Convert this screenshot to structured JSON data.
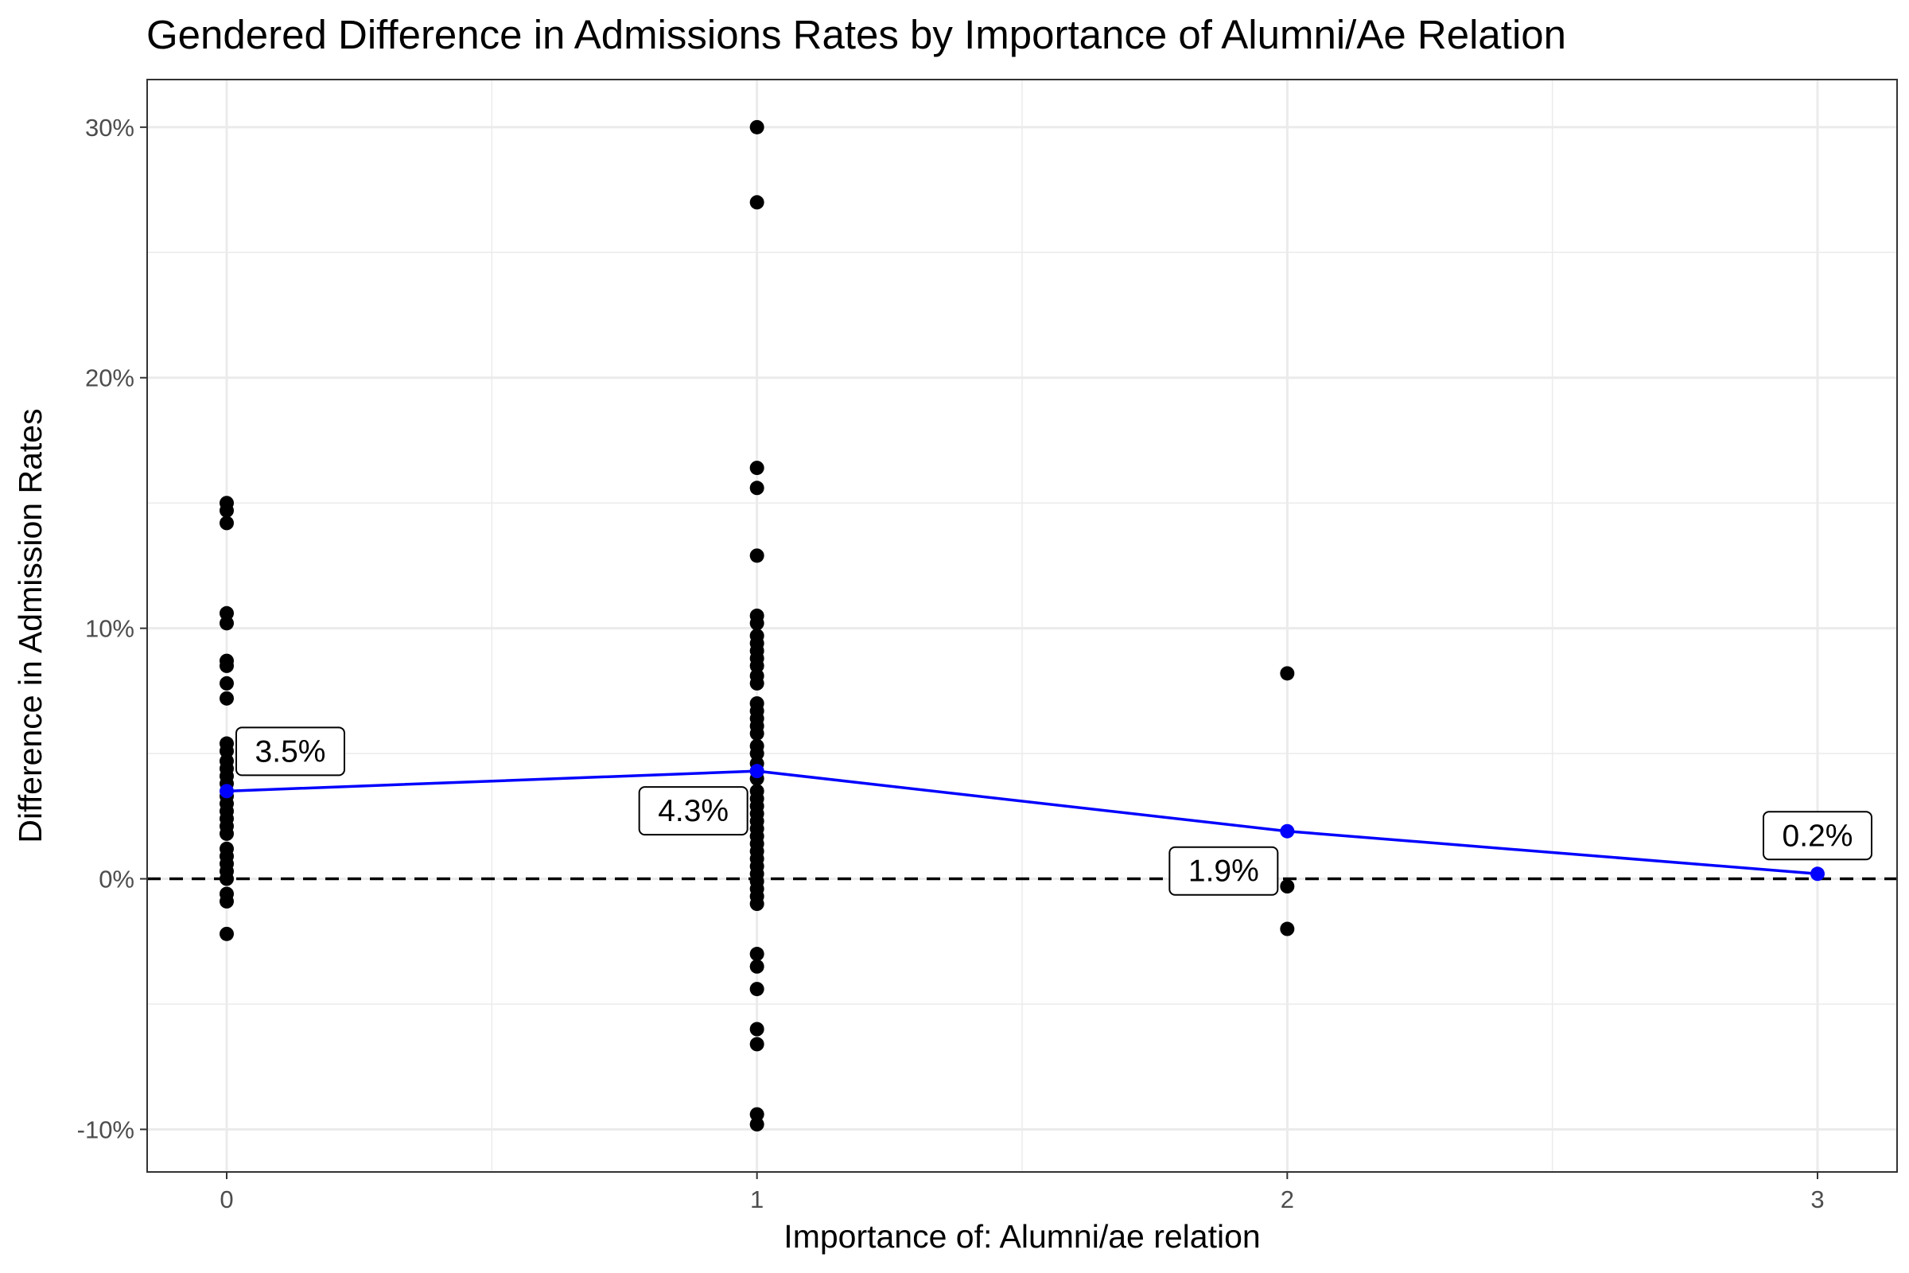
{
  "chart_data": {
    "type": "scatter",
    "title": "Gendered Difference in Admissions Rates by Importance of Alumni/Ae Relation",
    "xlabel": "Importance of: Alumni/ae relation",
    "ylabel": "Difference in Admission Rates",
    "xlim": [
      -0.15,
      3.15
    ],
    "ylim": [
      -11.7,
      31.9
    ],
    "x_ticks": [
      0,
      1,
      2,
      3
    ],
    "x_tick_labels": [
      "0",
      "1",
      "2",
      "3"
    ],
    "y_ticks": [
      -10,
      0,
      10,
      20,
      30
    ],
    "y_tick_labels": [
      "-10%",
      "0%",
      "10%",
      "20%",
      "30%"
    ],
    "grid": true,
    "reference_line": {
      "y": 0,
      "style": "dashed",
      "color": "#000000"
    },
    "series": [
      {
        "type": "scatter",
        "color": "#000000",
        "points": [
          {
            "x": 0,
            "y": 15.0
          },
          {
            "x": 0,
            "y": 14.7
          },
          {
            "x": 0,
            "y": 14.2
          },
          {
            "x": 0,
            "y": 10.6
          },
          {
            "x": 0,
            "y": 10.2
          },
          {
            "x": 0,
            "y": 8.7
          },
          {
            "x": 0,
            "y": 8.5
          },
          {
            "x": 0,
            "y": 7.8
          },
          {
            "x": 0,
            "y": 7.2
          },
          {
            "x": 0,
            "y": 5.4
          },
          {
            "x": 0,
            "y": 5.1
          },
          {
            "x": 0,
            "y": 4.7
          },
          {
            "x": 0,
            "y": 4.4
          },
          {
            "x": 0,
            "y": 4.1
          },
          {
            "x": 0,
            "y": 3.8
          },
          {
            "x": 0,
            "y": 3.3
          },
          {
            "x": 0,
            "y": 3.0
          },
          {
            "x": 0,
            "y": 2.7
          },
          {
            "x": 0,
            "y": 2.4
          },
          {
            "x": 0,
            "y": 2.1
          },
          {
            "x": 0,
            "y": 1.8
          },
          {
            "x": 0,
            "y": 1.2
          },
          {
            "x": 0,
            "y": 0.9
          },
          {
            "x": 0,
            "y": 0.6
          },
          {
            "x": 0,
            "y": 0.3
          },
          {
            "x": 0,
            "y": 0.0
          },
          {
            "x": 0,
            "y": -0.6
          },
          {
            "x": 0,
            "y": -0.9
          },
          {
            "x": 0,
            "y": -2.2
          },
          {
            "x": 1,
            "y": 30.0
          },
          {
            "x": 1,
            "y": 27.0
          },
          {
            "x": 1,
            "y": 16.4
          },
          {
            "x": 1,
            "y": 15.6
          },
          {
            "x": 1,
            "y": 12.9
          },
          {
            "x": 1,
            "y": 10.5
          },
          {
            "x": 1,
            "y": 10.2
          },
          {
            "x": 1,
            "y": 9.7
          },
          {
            "x": 1,
            "y": 9.4
          },
          {
            "x": 1,
            "y": 9.1
          },
          {
            "x": 1,
            "y": 8.8
          },
          {
            "x": 1,
            "y": 8.5
          },
          {
            "x": 1,
            "y": 8.1
          },
          {
            "x": 1,
            "y": 7.8
          },
          {
            "x": 1,
            "y": 7.0
          },
          {
            "x": 1,
            "y": 6.7
          },
          {
            "x": 1,
            "y": 6.4
          },
          {
            "x": 1,
            "y": 6.1
          },
          {
            "x": 1,
            "y": 5.8
          },
          {
            "x": 1,
            "y": 5.3
          },
          {
            "x": 1,
            "y": 5.0
          },
          {
            "x": 1,
            "y": 4.6
          },
          {
            "x": 1,
            "y": 4.3
          },
          {
            "x": 1,
            "y": 4.0
          },
          {
            "x": 1,
            "y": 3.5
          },
          {
            "x": 1,
            "y": 3.2
          },
          {
            "x": 1,
            "y": 2.9
          },
          {
            "x": 1,
            "y": 2.6
          },
          {
            "x": 1,
            "y": 2.3
          },
          {
            "x": 1,
            "y": 2.0
          },
          {
            "x": 1,
            "y": 1.7
          },
          {
            "x": 1,
            "y": 1.4
          },
          {
            "x": 1,
            "y": 1.1
          },
          {
            "x": 1,
            "y": 0.8
          },
          {
            "x": 1,
            "y": 0.5
          },
          {
            "x": 1,
            "y": 0.2
          },
          {
            "x": 1,
            "y": -0.1
          },
          {
            "x": 1,
            "y": -0.4
          },
          {
            "x": 1,
            "y": -0.7
          },
          {
            "x": 1,
            "y": -1.0
          },
          {
            "x": 1,
            "y": -3.0
          },
          {
            "x": 1,
            "y": -3.5
          },
          {
            "x": 1,
            "y": -4.4
          },
          {
            "x": 1,
            "y": -6.0
          },
          {
            "x": 1,
            "y": -6.6
          },
          {
            "x": 1,
            "y": -9.4
          },
          {
            "x": 1,
            "y": -9.8
          },
          {
            "x": 2,
            "y": 8.2
          },
          {
            "x": 2,
            "y": -0.3
          },
          {
            "x": 2,
            "y": -2.0
          }
        ]
      },
      {
        "type": "line",
        "color": "#0000ff",
        "points": [
          {
            "x": 0,
            "y": 3.5,
            "label": "3.5%"
          },
          {
            "x": 1,
            "y": 4.3,
            "label": "4.3%"
          },
          {
            "x": 2,
            "y": 1.9,
            "label": "1.9%"
          },
          {
            "x": 3,
            "y": 0.2,
            "label": "0.2%"
          }
        ]
      }
    ]
  }
}
